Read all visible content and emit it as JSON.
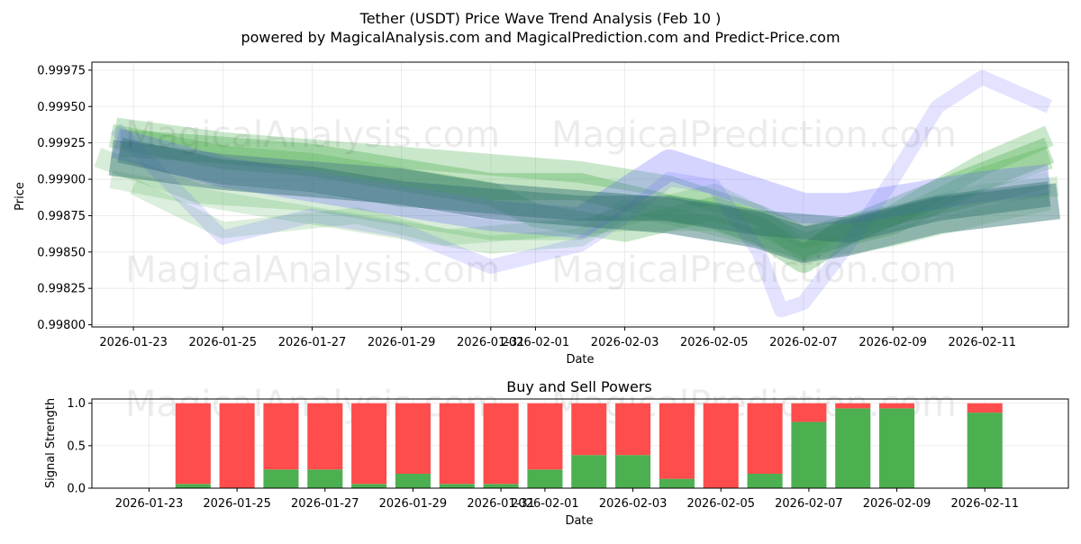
{
  "title": "Tether (USDT) Price Wave Trend Analysis (Feb 10 )",
  "subtitle": "powered by MagicalAnalysis.com and MagicalPrediction.com and Predict-Price.com",
  "watermarks": [
    "MagicalAnalysis.com",
    "MagicalPrediction.com"
  ],
  "colors": {
    "green": "#4caf50",
    "red": "#ff4c4c",
    "blue": "#6666ff",
    "teal": "#2e6f6f"
  },
  "chart_data": [
    {
      "type": "area",
      "title": "",
      "xlabel": "Date",
      "ylabel": "Price",
      "x_ticks": [
        "2026-01-23",
        "2026-01-25",
        "2026-01-27",
        "2026-01-29",
        "2026-01-31",
        "2026-02-01",
        "2026-02-03",
        "2026-02-05",
        "2026-02-07",
        "2026-02-09",
        "2026-02-11"
      ],
      "y_ticks": [
        "0.99800",
        "0.99825",
        "0.99850",
        "0.99875",
        "0.99900",
        "0.99925",
        "0.99950",
        "0.99975"
      ],
      "ylim": [
        0.997985,
        0.999805
      ],
      "xlim_days": [
        -0.93,
        20.93
      ],
      "grid": true,
      "series": [
        {
          "name": "green-band-a",
          "color": "green",
          "x": [
            -0.8,
            1.5,
            4,
            6,
            8,
            10,
            11,
            13,
            14,
            15,
            17,
            19,
            20.7
          ],
          "values": [
            0.99915,
            0.9989,
            0.99885,
            0.99875,
            0.99865,
            0.99865,
            0.99875,
            0.9989,
            0.99875,
            0.9985,
            0.99875,
            0.9989,
            0.99895
          ]
        },
        {
          "name": "green-band-b",
          "color": "green",
          "x": [
            -0.5,
            2,
            4,
            6,
            8,
            9,
            11,
            13,
            14,
            15,
            17,
            19,
            20.5
          ],
          "values": [
            0.9993,
            0.99915,
            0.9991,
            0.999,
            0.9989,
            0.99875,
            0.99865,
            0.9988,
            0.9987,
            0.99855,
            0.9987,
            0.999,
            0.99915
          ]
        },
        {
          "name": "green-band-c",
          "color": "green",
          "x": [
            -0.5,
            2,
            4,
            6,
            8,
            10,
            11,
            12,
            14,
            15,
            17,
            19,
            20.5
          ],
          "values": [
            0.999,
            0.99885,
            0.99875,
            0.99865,
            0.99855,
            0.9986,
            0.9988,
            0.99875,
            0.9986,
            0.9985,
            0.9986,
            0.99875,
            0.99885
          ]
        },
        {
          "name": "green-band-d",
          "color": "green",
          "x": [
            -0.3,
            2,
            4,
            6,
            8,
            10,
            12,
            13,
            14,
            15,
            16,
            18,
            20.5
          ],
          "values": [
            0.99925,
            0.9992,
            0.99915,
            0.99905,
            0.99895,
            0.99895,
            0.9988,
            0.99875,
            0.99865,
            0.99845,
            0.99865,
            0.9989,
            0.9992
          ]
        },
        {
          "name": "green-band-e",
          "color": "green",
          "x": [
            0,
            2,
            5,
            7,
            9,
            11,
            13,
            14,
            15,
            16,
            18,
            20.5
          ],
          "values": [
            0.99895,
            0.99865,
            0.99875,
            0.9986,
            0.99865,
            0.9987,
            0.9987,
            0.9986,
            0.9985,
            0.9987,
            0.9988,
            0.999
          ]
        },
        {
          "name": "green-band-f",
          "color": "green",
          "x": [
            -0.4,
            2,
            4,
            6,
            8,
            10,
            12,
            13,
            14,
            15,
            17,
            19,
            20.5
          ],
          "values": [
            0.99935,
            0.99925,
            0.9992,
            0.99915,
            0.9991,
            0.99905,
            0.99895,
            0.99885,
            0.99875,
            0.9986,
            0.99875,
            0.9991,
            0.9993
          ]
        },
        {
          "name": "blue-band-a",
          "color": "blue",
          "x": [
            -0.4,
            2,
            4,
            6,
            8,
            10,
            11,
            12,
            13,
            14,
            14.5,
            15,
            16,
            17,
            18,
            19,
            20.5
          ],
          "values": [
            0.99935,
            0.9986,
            0.99875,
            0.99865,
            0.9984,
            0.99855,
            0.99875,
            0.999,
            0.99895,
            0.9985,
            0.9981,
            0.99815,
            0.99855,
            0.999,
            0.9995,
            0.9997,
            0.9995
          ]
        },
        {
          "name": "blue-band-b",
          "color": "blue",
          "x": [
            -0.4,
            2,
            4,
            6,
            8,
            10,
            11,
            12,
            13,
            14,
            15,
            16,
            17,
            18,
            19,
            20.5
          ],
          "values": [
            0.99925,
            0.99905,
            0.99895,
            0.99885,
            0.99875,
            0.9987,
            0.9989,
            0.9991,
            0.999,
            0.9989,
            0.9988,
            0.9988,
            0.99885,
            0.9989,
            0.99895,
            0.999
          ]
        },
        {
          "name": "teal-band-a",
          "color": "teal",
          "x": [
            -0.5,
            2,
            4,
            6,
            8,
            10,
            12,
            14,
            15,
            16,
            18,
            20.7
          ],
          "values": [
            0.99915,
            0.99905,
            0.999,
            0.99895,
            0.99885,
            0.9988,
            0.99875,
            0.99865,
            0.99855,
            0.9986,
            0.99875,
            0.99885
          ]
        },
        {
          "name": "teal-band-b",
          "color": "teal",
          "x": [
            -0.3,
            2,
            4,
            6,
            8,
            10,
            12,
            14,
            16,
            18,
            20.5
          ],
          "values": [
            0.9992,
            0.99905,
            0.999,
            0.9989,
            0.99885,
            0.9988,
            0.9988,
            0.9987,
            0.99865,
            0.9988,
            0.9989
          ]
        }
      ]
    },
    {
      "type": "bar",
      "title": "Buy and Sell Powers",
      "xlabel": "Date",
      "ylabel": "Signal Strength",
      "x_ticks": [
        "2026-01-23",
        "2026-01-25",
        "2026-01-27",
        "2026-01-29",
        "2026-01-31",
        "2026-02-01",
        "2026-02-03",
        "2026-02-05",
        "2026-02-07",
        "2026-02-09",
        "2026-02-11"
      ],
      "y_ticks": [
        "0.0",
        "0.5",
        "1.0"
      ],
      "ylim": [
        0,
        1.05
      ],
      "xlim_days": [
        -1.3,
        20.9
      ],
      "grid": true,
      "bar_days": [
        1,
        2,
        3,
        4,
        5,
        6,
        7,
        8,
        9,
        10,
        11,
        12,
        13,
        14,
        15,
        16,
        17,
        19
      ],
      "series": [
        {
          "name": "Buy",
          "color": "green",
          "values": [
            0.05,
            0.0,
            0.22,
            0.22,
            0.05,
            0.17,
            0.05,
            0.05,
            0.22,
            0.39,
            0.39,
            0.11,
            0.0,
            0.17,
            0.78,
            0.94,
            0.94,
            0.89
          ]
        },
        {
          "name": "Sell",
          "color": "red",
          "values": [
            0.95,
            1.0,
            0.78,
            0.78,
            0.95,
            0.83,
            0.95,
            0.95,
            0.78,
            0.61,
            0.61,
            0.89,
            1.0,
            0.83,
            0.22,
            0.06,
            0.06,
            0.11
          ]
        }
      ]
    }
  ]
}
